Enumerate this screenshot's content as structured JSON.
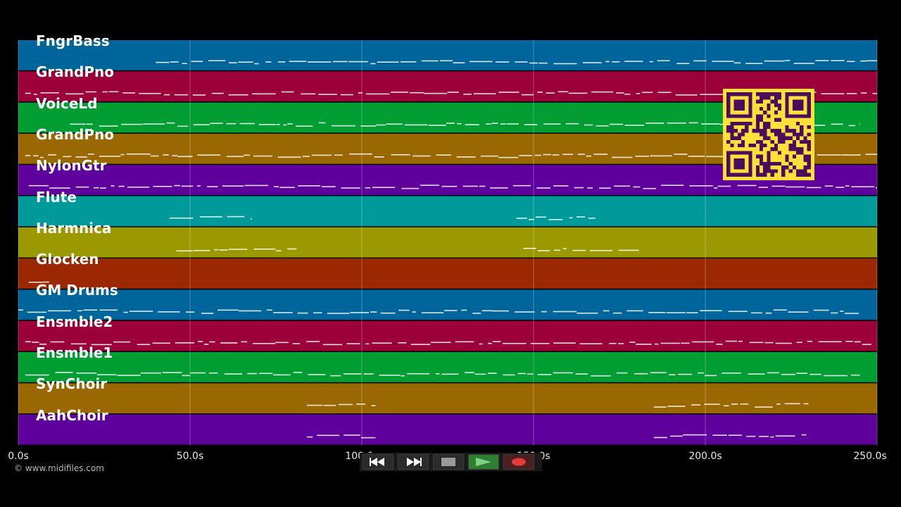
{
  "tracks": [
    {
      "label": "FngrBass",
      "color": "#00659b"
    },
    {
      "label": "GrandPno",
      "color": "#9b0038"
    },
    {
      "label": "VoiceLd",
      "color": "#009d33"
    },
    {
      "label": "GrandPno",
      "color": "#9a6800"
    },
    {
      "label": "NylonGtr",
      "color": "#5e009b"
    },
    {
      "label": "Flute",
      "color": "#009a9a"
    },
    {
      "label": "Harmnica",
      "color": "#9a9a00"
    },
    {
      "label": "Glocken",
      "color": "#9b2800"
    },
    {
      "label": "GM Drums",
      "color": "#00659b"
    },
    {
      "label": "Ensmble2",
      "color": "#9b0038"
    },
    {
      "label": "Ensmble1",
      "color": "#009d33"
    },
    {
      "label": "SynChoir",
      "color": "#9a6800"
    },
    {
      "label": "AahChoir",
      "color": "#5e009b"
    }
  ],
  "timeline": {
    "start_seconds": 0,
    "end_seconds": 250,
    "tick_values": [
      0,
      50,
      100,
      150,
      200,
      250
    ],
    "tick_labels": [
      "0.0s",
      "50.0s",
      "100.0s",
      "150.0s",
      "200.0s",
      "250.0s"
    ]
  },
  "copyright": "© www.midifiles.com",
  "transport": {
    "rewind_icon": "rewind-icon",
    "fast_forward_icon": "fast-forward-icon",
    "stop_icon": "stop-icon",
    "play_icon": "play-icon",
    "record_icon": "record-icon"
  },
  "qr_colors": {
    "fg": "#4a0e5c",
    "bg": "#ffe03a"
  }
}
